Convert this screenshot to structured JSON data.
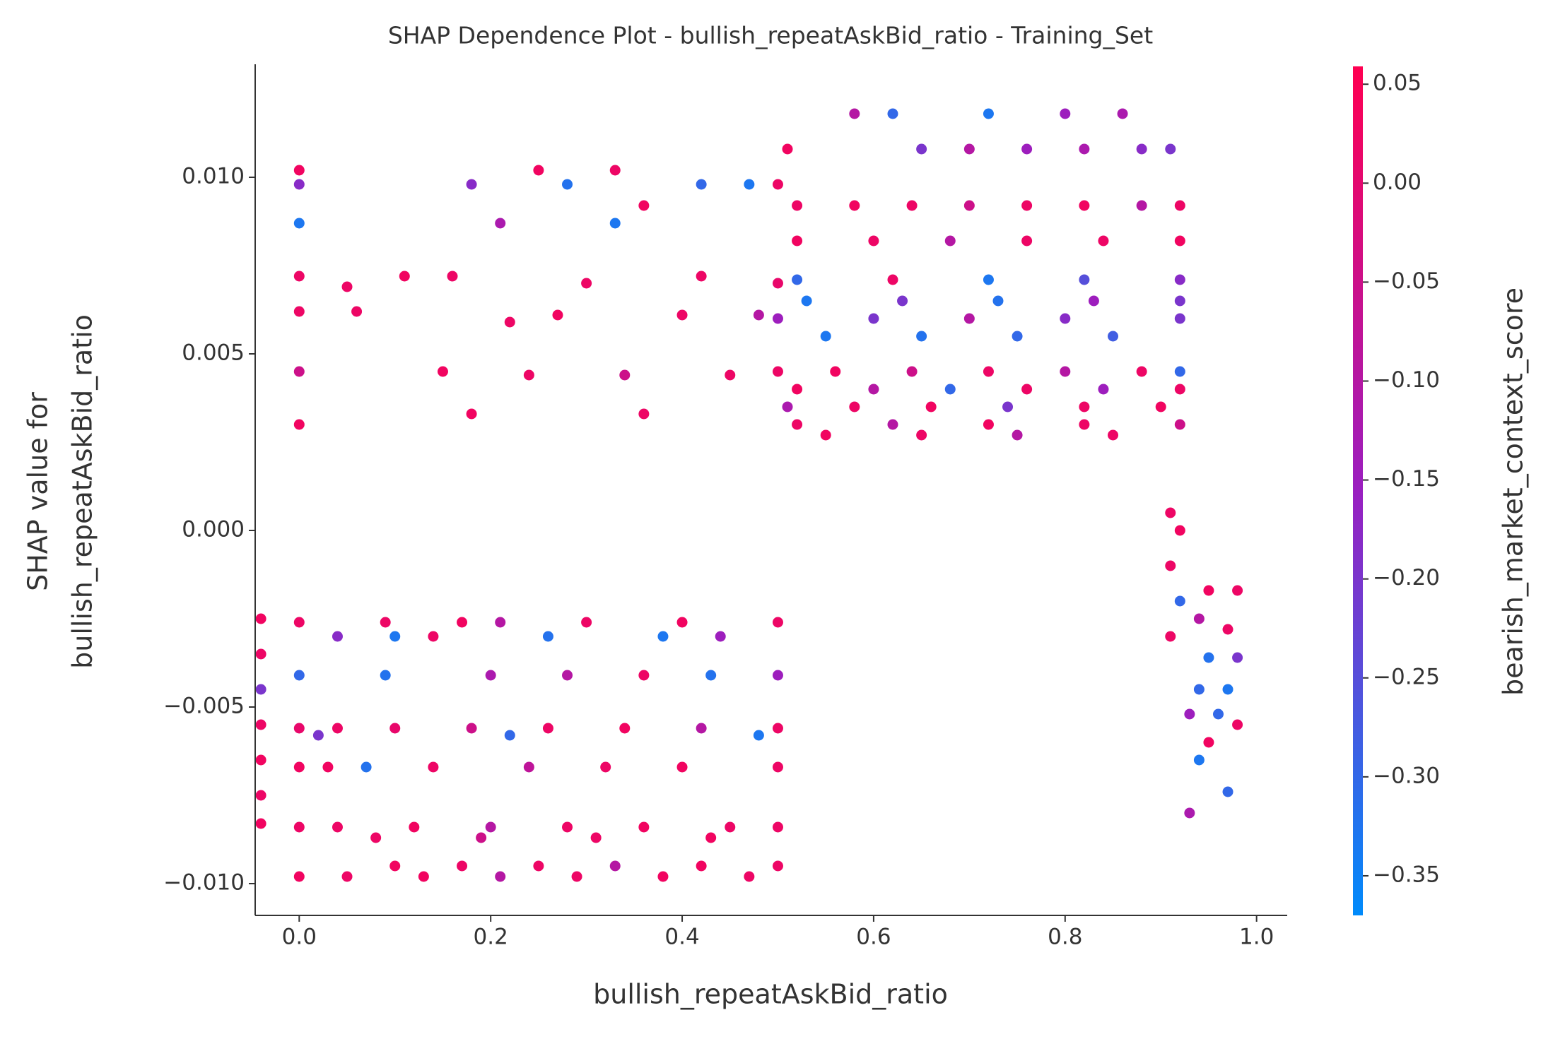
{
  "chart_data": {
    "type": "scatter",
    "title": "SHAP Dependence Plot - bullish_repeatAskBid_ratio - Training_Set",
    "xlabel": "bullish_repeatAskBid_ratio",
    "ylabel": [
      "SHAP value for",
      "bullish_repeatAskBid_ratio"
    ],
    "colorbar_label": "bearish_market_context_score",
    "colormap": [
      "#008bfb",
      "#9a1fc0",
      "#ff0051"
    ],
    "xlim": [
      -0.046,
      1.032
    ],
    "ylim": [
      -0.0109,
      0.0132
    ],
    "clim": [
      -0.37,
      0.059
    ],
    "xticks": [
      {
        "value": 0,
        "label": "0.0"
      },
      {
        "value": 0.2,
        "label": "0.2"
      },
      {
        "value": 0.4,
        "label": "0.4"
      },
      {
        "value": 0.6,
        "label": "0.6"
      },
      {
        "value": 0.8,
        "label": "0.8"
      },
      {
        "value": 1.0,
        "label": "1.0"
      }
    ],
    "yticks": [
      {
        "value": -0.01,
        "label": "−0.010"
      },
      {
        "value": -0.005,
        "label": "−0.005"
      },
      {
        "value": 0,
        "label": "0.000"
      },
      {
        "value": 0.005,
        "label": "0.005"
      },
      {
        "value": 0.01,
        "label": "0.010"
      }
    ],
    "cticks": [
      {
        "value": 0.05,
        "label": "0.05"
      },
      {
        "value": 0,
        "label": "0.00"
      },
      {
        "value": -0.05,
        "label": "−0.05"
      },
      {
        "value": -0.1,
        "label": "−0.10"
      },
      {
        "value": -0.15,
        "label": "−0.15"
      },
      {
        "value": -0.2,
        "label": "−0.20"
      },
      {
        "value": -0.25,
        "label": "−0.25"
      },
      {
        "value": -0.3,
        "label": "−0.30"
      },
      {
        "value": -0.35,
        "label": "−0.35"
      }
    ],
    "x": [
      0,
      0,
      0,
      0,
      0,
      0,
      0,
      0,
      0,
      0,
      0,
      0,
      0,
      0.05,
      0.06,
      0.11,
      0.16,
      0.18,
      0.21,
      0.25,
      0.28,
      0.33,
      0.33,
      0.36,
      0.42,
      0.47,
      0.5,
      0.15,
      0.24,
      0.34,
      0.45,
      0.18,
      0.36,
      0.27,
      0.4,
      0.48,
      0.22,
      0.3,
      0.42,
      0.5,
      0.09,
      0.17,
      0.21,
      0.3,
      0.4,
      0.5,
      0.04,
      0.1,
      0.14,
      0.26,
      0.38,
      0.44,
      0.09,
      0.2,
      0.28,
      0.36,
      0.43,
      0.5,
      0.04,
      0.1,
      0.18,
      0.26,
      0.34,
      0.42,
      0.5,
      0.02,
      0.22,
      0.48,
      0.03,
      0.07,
      0.14,
      0.24,
      0.32,
      0.4,
      0.5,
      0.04,
      0.12,
      0.2,
      0.28,
      0.36,
      0.45,
      0.5,
      0.08,
      0.19,
      0.31,
      0.43,
      0.1,
      0.17,
      0.25,
      0.33,
      0.42,
      0.5,
      0.05,
      0.13,
      0.21,
      0.29,
      0.38,
      0.47,
      0.58,
      0.62,
      0.72,
      0.8,
      0.86,
      0.51,
      0.65,
      0.7,
      0.76,
      0.82,
      0.88,
      0.91,
      0.52,
      0.58,
      0.64,
      0.7,
      0.76,
      0.82,
      0.88,
      0.92,
      0.52,
      0.6,
      0.68,
      0.76,
      0.84,
      0.92,
      0.52,
      0.62,
      0.72,
      0.82,
      0.92,
      0.53,
      0.63,
      0.73,
      0.83,
      0.92,
      0.5,
      0.6,
      0.7,
      0.8,
      0.92,
      0.55,
      0.65,
      0.75,
      0.85,
      0.5,
      0.56,
      0.64,
      0.72,
      0.8,
      0.88,
      0.92,
      0.52,
      0.6,
      0.68,
      0.76,
      0.84,
      0.92,
      0.51,
      0.58,
      0.66,
      0.74,
      0.82,
      0.9,
      0.52,
      0.62,
      0.72,
      0.82,
      0.92,
      0.55,
      0.65,
      0.75,
      0.85,
      0.91,
      0.92,
      0.91,
      0.92,
      0.91,
      0.95,
      0.98,
      0.94,
      0.97,
      0.95,
      0.98,
      0.94,
      0.97,
      0.93,
      0.96,
      0.98,
      0.94,
      0.93,
      0.97,
      0.95,
      -0.04,
      -0.04,
      -0.04,
      -0.04,
      -0.04,
      -0.04,
      -0.04
    ],
    "values": [
      0.0102,
      0.0098,
      0.0087,
      0.0072,
      0.0062,
      0.0045,
      0.003,
      -0.0026,
      -0.0041,
      -0.0056,
      -0.0067,
      -0.0084,
      -0.0098,
      0.0069,
      0.0062,
      0.0072,
      0.0072,
      0.0098,
      0.0087,
      0.0102,
      0.0098,
      0.0102,
      0.0087,
      0.0092,
      0.0098,
      0.0098,
      0.0098,
      0.0045,
      0.0044,
      0.0044,
      0.0044,
      0.0033,
      0.0033,
      0.0061,
      0.0061,
      0.0061,
      0.0059,
      0.007,
      0.0072,
      0.007,
      -0.0026,
      -0.0026,
      -0.0026,
      -0.0026,
      -0.0026,
      -0.0026,
      -0.003,
      -0.003,
      -0.003,
      -0.003,
      -0.003,
      -0.003,
      -0.0041,
      -0.0041,
      -0.0041,
      -0.0041,
      -0.0041,
      -0.0041,
      -0.0056,
      -0.0056,
      -0.0056,
      -0.0056,
      -0.0056,
      -0.0056,
      -0.0056,
      -0.0058,
      -0.0058,
      -0.0058,
      -0.0067,
      -0.0067,
      -0.0067,
      -0.0067,
      -0.0067,
      -0.0067,
      -0.0067,
      -0.0084,
      -0.0084,
      -0.0084,
      -0.0084,
      -0.0084,
      -0.0084,
      -0.0084,
      -0.0087,
      -0.0087,
      -0.0087,
      -0.0087,
      -0.0095,
      -0.0095,
      -0.0095,
      -0.0095,
      -0.0095,
      -0.0095,
      -0.0098,
      -0.0098,
      -0.0098,
      -0.0098,
      -0.0098,
      -0.0098,
      0.0118,
      0.0118,
      0.0118,
      0.0118,
      0.0118,
      0.0108,
      0.0108,
      0.0108,
      0.0108,
      0.0108,
      0.0108,
      0.0108,
      0.0092,
      0.0092,
      0.0092,
      0.0092,
      0.0092,
      0.0092,
      0.0092,
      0.0092,
      0.0082,
      0.0082,
      0.0082,
      0.0082,
      0.0082,
      0.0082,
      0.0071,
      0.0071,
      0.0071,
      0.0071,
      0.0071,
      0.0065,
      0.0065,
      0.0065,
      0.0065,
      0.0065,
      0.006,
      0.006,
      0.006,
      0.006,
      0.006,
      0.0055,
      0.0055,
      0.0055,
      0.0055,
      0.0045,
      0.0045,
      0.0045,
      0.0045,
      0.0045,
      0.0045,
      0.0045,
      0.004,
      0.004,
      0.004,
      0.004,
      0.004,
      0.004,
      0.0035,
      0.0035,
      0.0035,
      0.0035,
      0.0035,
      0.0035,
      0.003,
      0.003,
      0.003,
      0.003,
      0.003,
      0.0027,
      0.0027,
      0.0027,
      0.0027,
      0.0005,
      0.0,
      -0.001,
      -0.002,
      -0.003,
      -0.0017,
      -0.0017,
      -0.0025,
      -0.0028,
      -0.0036,
      -0.0036,
      -0.0045,
      -0.0045,
      -0.0052,
      -0.0052,
      -0.0055,
      -0.0065,
      -0.008,
      -0.0074,
      -0.006,
      -0.0025,
      -0.0035,
      -0.0045,
      -0.0055,
      -0.0065,
      -0.0075,
      -0.0083
    ],
    "color_values": [
      0.03,
      -0.18,
      -0.33,
      0.02,
      0.02,
      -0.05,
      0.03,
      0.02,
      -0.3,
      0.01,
      0.03,
      0.02,
      0.03,
      0.02,
      0.02,
      0.03,
      0.02,
      -0.18,
      -0.12,
      0.03,
      -0.32,
      0.02,
      -0.33,
      0.03,
      -0.3,
      -0.33,
      0.02,
      0.03,
      0.02,
      -0.05,
      0.02,
      0.03,
      0.02,
      0.03,
      0.02,
      -0.1,
      0.02,
      0.02,
      0.02,
      0.01,
      0.02,
      0.03,
      -0.1,
      0.02,
      0.03,
      0.02,
      -0.18,
      -0.33,
      0.02,
      -0.32,
      -0.33,
      -0.15,
      -0.32,
      -0.12,
      -0.1,
      0.02,
      -0.32,
      -0.15,
      0.02,
      0.01,
      -0.05,
      0.02,
      0.03,
      -0.1,
      0.02,
      -0.2,
      -0.3,
      -0.33,
      0.03,
      -0.32,
      0.02,
      -0.08,
      0.02,
      0.03,
      0.02,
      0.02,
      0.03,
      -0.1,
      0.02,
      0.03,
      0.02,
      0.02,
      0.02,
      -0.05,
      0.02,
      0.03,
      0.03,
      0.02,
      0.02,
      -0.1,
      0.03,
      0.02,
      0.02,
      0.03,
      -0.1,
      0.02,
      0.03,
      0.02,
      -0.1,
      -0.3,
      -0.33,
      -0.15,
      -0.12,
      0.03,
      -0.2,
      -0.1,
      -0.15,
      -0.12,
      -0.18,
      -0.2,
      0.02,
      0.03,
      0.02,
      -0.05,
      0.02,
      0.03,
      -0.1,
      0.02,
      0.03,
      0.02,
      -0.1,
      0.02,
      0.02,
      0.03,
      -0.3,
      0.02,
      -0.33,
      -0.25,
      -0.18,
      -0.33,
      -0.2,
      -0.32,
      -0.15,
      -0.2,
      -0.15,
      -0.2,
      -0.1,
      -0.18,
      -0.2,
      -0.33,
      -0.32,
      -0.3,
      -0.28,
      0.02,
      0.03,
      -0.05,
      0.02,
      -0.1,
      0.02,
      -0.3,
      0.03,
      -0.1,
      -0.3,
      0.02,
      -0.15,
      0.02,
      -0.12,
      0.02,
      0.03,
      -0.2,
      0.02,
      0.03,
      0.02,
      -0.1,
      0.03,
      0.02,
      -0.05,
      0.03,
      0.02,
      -0.1,
      0.02,
      0.02,
      0.03,
      0.02,
      -0.3,
      0.02,
      0.03,
      0.02,
      -0.1,
      0.02,
      -0.32,
      -0.2,
      -0.3,
      -0.33,
      -0.15,
      -0.3,
      0.02,
      -0.33,
      -0.12,
      -0.3,
      0.03,
      0.03,
      0.02,
      -0.2,
      0.02,
      0.03,
      0.02,
      0.03
    ]
  }
}
